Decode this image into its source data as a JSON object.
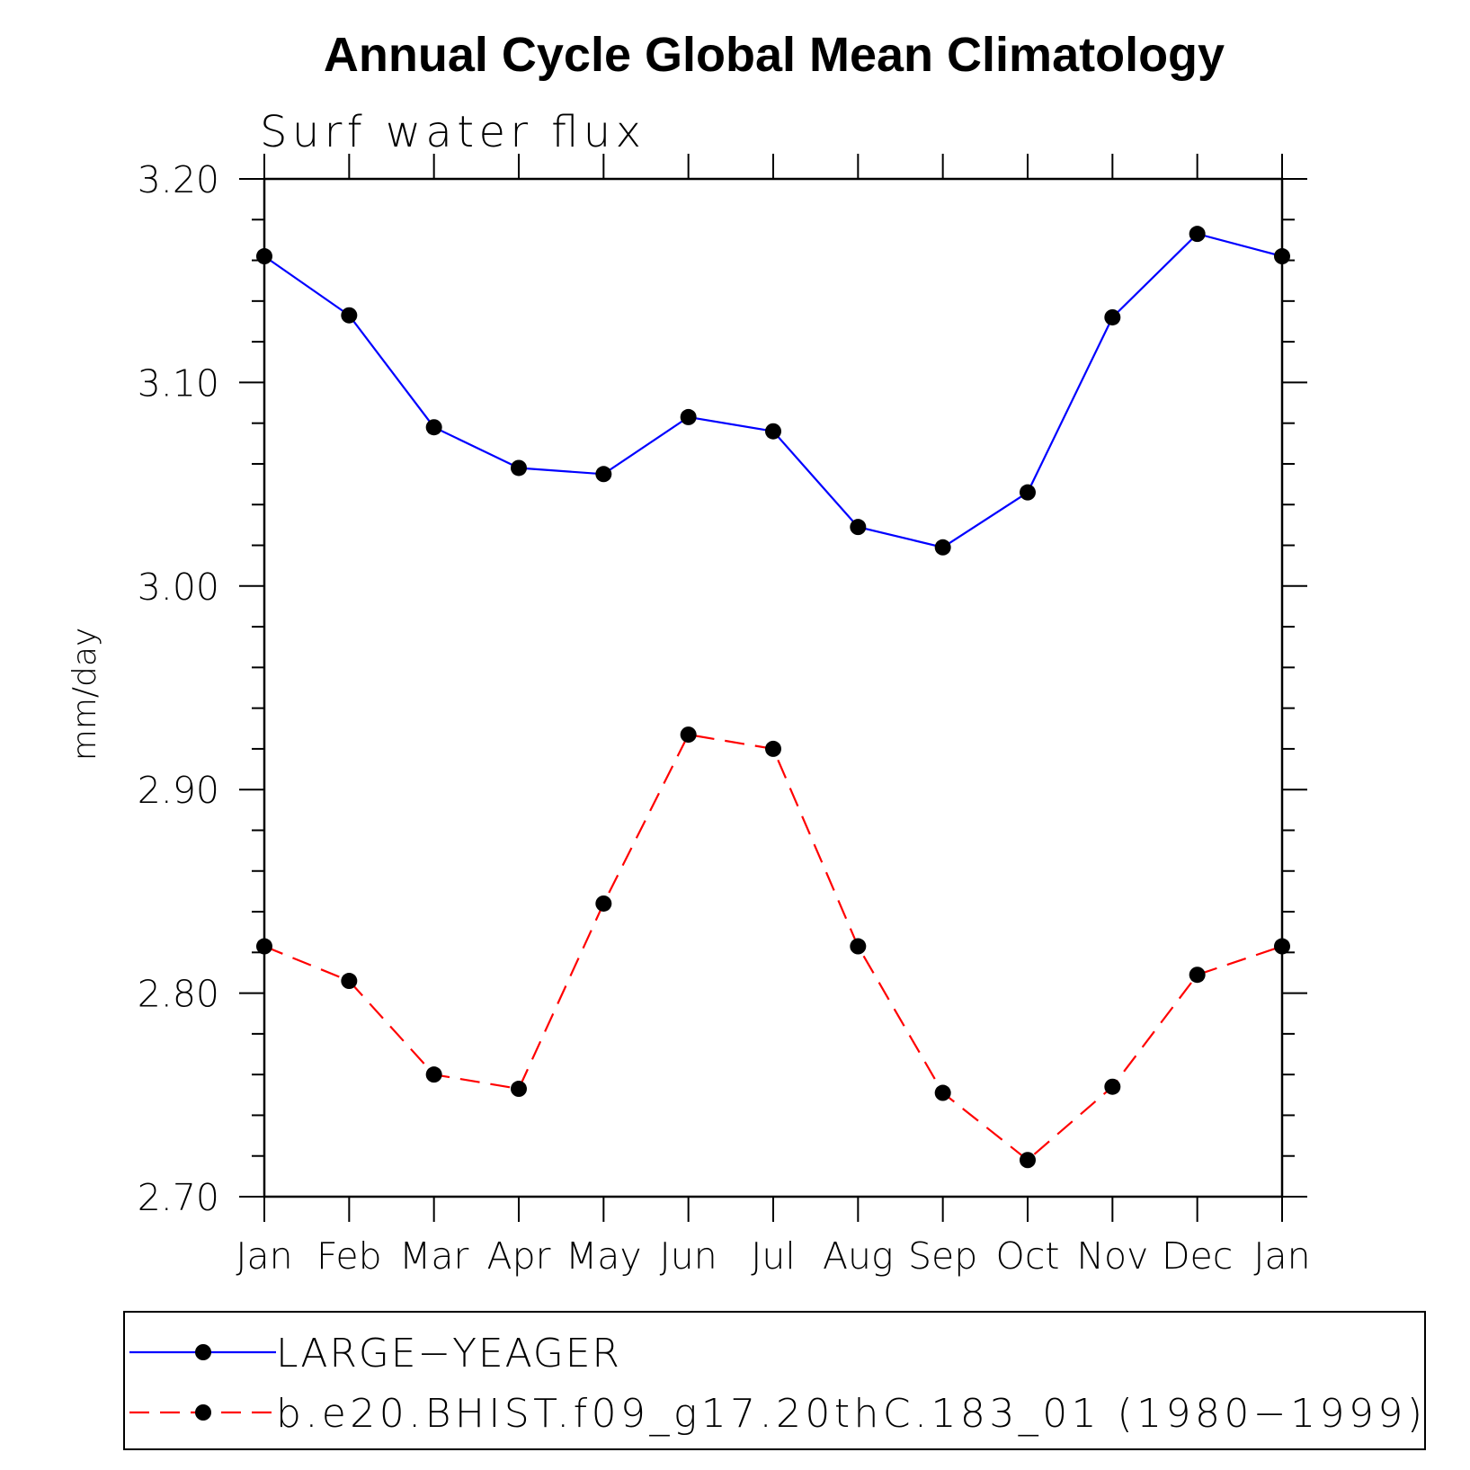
{
  "chart_data": {
    "type": "line",
    "title": "Annual Cycle Global Mean Climatology",
    "subtitle": "Surf water flux",
    "ylabel": "mm/day",
    "xlabel": "",
    "categories": [
      "Jan",
      "Feb",
      "Mar",
      "Apr",
      "May",
      "Jun",
      "Jul",
      "Aug",
      "Sep",
      "Oct",
      "Nov",
      "Dec",
      "Jan"
    ],
    "ylim": [
      2.7,
      3.2
    ],
    "yticks": [
      "2.70",
      "2.80",
      "2.90",
      "3.00",
      "3.10",
      "3.20"
    ],
    "grid": false,
    "legend_position": "bottom",
    "series": [
      {
        "name": "LARGE−YEAGER",
        "color": "#0000ff",
        "line_style": "solid",
        "marker": "filled-circle",
        "values": [
          3.162,
          3.133,
          3.078,
          3.058,
          3.055,
          3.083,
          3.076,
          3.029,
          3.019,
          3.046,
          3.132,
          3.173,
          3.162
        ]
      },
      {
        "name": "b.e20.BHIST.f09_g17.20thC.183_01 (1980−1999)",
        "color": "#ff0000",
        "line_style": "dashed",
        "marker": "filled-circle",
        "values": [
          2.823,
          2.806,
          2.76,
          2.753,
          2.844,
          2.927,
          2.92,
          2.823,
          2.751,
          2.718,
          2.754,
          2.809,
          2.823
        ]
      }
    ]
  }
}
